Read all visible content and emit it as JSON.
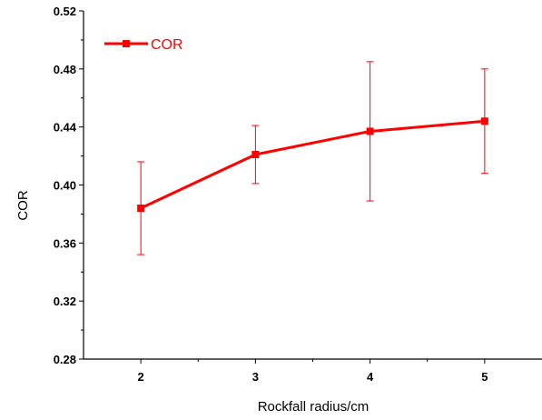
{
  "chart_data": {
    "type": "line",
    "title": "",
    "xlabel": "Rockfall radius/cm",
    "ylabel": "COR",
    "x": [
      2,
      3,
      4,
      5
    ],
    "xlim": [
      1.5,
      5.5
    ],
    "ylim": [
      0.28,
      0.52
    ],
    "xticks": [
      "2",
      "3",
      "4",
      "5"
    ],
    "yticks": [
      "0.28",
      "0.32",
      "0.36",
      "0.40",
      "0.44",
      "0.48",
      "0.52"
    ],
    "grid": false,
    "legend_position": "top-left",
    "series": [
      {
        "name": "COR",
        "color": "#ff0000",
        "marker": "square",
        "values": [
          0.384,
          0.421,
          0.437,
          0.444
        ],
        "error_low": [
          0.352,
          0.401,
          0.389,
          0.408
        ],
        "error_high": [
          0.416,
          0.441,
          0.485,
          0.48
        ]
      }
    ]
  }
}
